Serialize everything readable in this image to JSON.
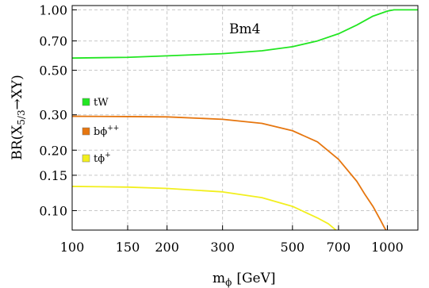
{
  "chart_data": {
    "type": "line",
    "title": "",
    "annotation": "Bm4",
    "xlabel_main": "m",
    "xlabel_sub": "ϕ",
    "xlabel_unit": "[GeV]",
    "ylabel": "BR(X5/3→XY)",
    "ylabel_parts": {
      "pre": "BR(X",
      "sub": "5/3",
      "post": "→XY)"
    },
    "xscale": "log",
    "yscale": "log",
    "xlim": [
      100,
      1250
    ],
    "ylim": [
      0.08,
      1.05
    ],
    "grid": true,
    "legend_position": "left",
    "x_ticks": [
      {
        "value": 100,
        "label": "100"
      },
      {
        "value": 150,
        "label": "150"
      },
      {
        "value": 200,
        "label": "200"
      },
      {
        "value": 300,
        "label": "300"
      },
      {
        "value": 500,
        "label": "500"
      },
      {
        "value": 700,
        "label": "700"
      },
      {
        "value": 1000,
        "label": "1000"
      }
    ],
    "y_ticks": [
      {
        "value": 0.1,
        "label": "0.10"
      },
      {
        "value": 0.15,
        "label": "0.15"
      },
      {
        "value": 0.2,
        "label": "0.20"
      },
      {
        "value": 0.3,
        "label": "0.30"
      },
      {
        "value": 0.5,
        "label": "0.50"
      },
      {
        "value": 0.7,
        "label": "0.70"
      },
      {
        "value": 1.0,
        "label": "1.00"
      }
    ],
    "series": [
      {
        "name": "tW",
        "legend_main": "tW",
        "legend_sup": "",
        "color": "#22e622",
        "x": [
          100,
          150,
          200,
          300,
          400,
          500,
          600,
          700,
          800,
          900,
          1000,
          1050,
          1100,
          1150,
          1200,
          1250
        ],
        "y": [
          0.575,
          0.58,
          0.59,
          0.605,
          0.625,
          0.655,
          0.7,
          0.76,
          0.84,
          0.93,
          0.985,
          1.0,
          1.0,
          1.0,
          1.0,
          1.0
        ]
      },
      {
        "name": "bϕ++",
        "legend_main": "bϕ",
        "legend_sup": "++",
        "color": "#e6760f",
        "x": [
          100,
          150,
          200,
          300,
          400,
          500,
          600,
          700,
          800,
          850,
          900,
          950,
          980,
          1000
        ],
        "y": [
          0.295,
          0.294,
          0.293,
          0.285,
          0.272,
          0.25,
          0.22,
          0.18,
          0.14,
          0.12,
          0.105,
          0.09,
          0.082,
          0.078
        ]
      },
      {
        "name": "tϕ+",
        "legend_main": "tϕ",
        "legend_sup": "+",
        "color": "#f2ef1e",
        "x": [
          100,
          150,
          200,
          300,
          400,
          500,
          600,
          650,
          700
        ],
        "y": [
          0.132,
          0.131,
          0.129,
          0.124,
          0.116,
          0.105,
          0.092,
          0.086,
          0.078
        ]
      }
    ]
  }
}
